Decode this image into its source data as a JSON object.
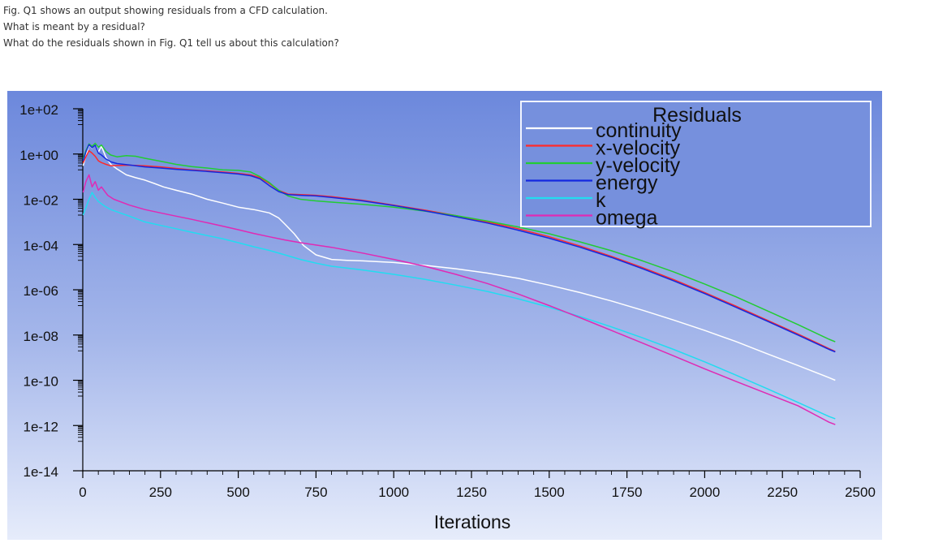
{
  "question": {
    "line1": "Fig. Q1 shows an output showing residuals from a CFD calculation.",
    "line2": "What is meant by a residual?",
    "line3": "What do the residuals shown in Fig. Q1 tell us about this calculation?"
  },
  "chart_data": {
    "type": "line",
    "title": "",
    "xlabel": "Iterations",
    "ylabel": "",
    "xlim": [
      0,
      2500
    ],
    "ylim": [
      1e-14,
      100
    ],
    "yscale": "log",
    "grid": false,
    "legend_title": "Residuals",
    "legend_position": "top-right",
    "x_ticks": [
      "0",
      "250",
      "500",
      "750",
      "1000",
      "1250",
      "1500",
      "1750",
      "2000",
      "2250",
      "2500"
    ],
    "x_tick_values": [
      0,
      250,
      500,
      750,
      1000,
      1250,
      1500,
      1750,
      2000,
      2250,
      2500
    ],
    "y_ticks": [
      "1e+02",
      "1e+00",
      "1e-02",
      "1e-04",
      "1e-06",
      "1e-08",
      "1e-10",
      "1e-12",
      "1e-14"
    ],
    "y_tick_values": [
      100,
      1,
      0.01,
      0.0001,
      1e-06,
      1e-08,
      1e-10,
      1e-12,
      1e-14
    ],
    "series": [
      {
        "name": "continuity",
        "color": "#ffffff",
        "points": [
          [
            1,
            0.3
          ],
          [
            10,
            0.8
          ],
          [
            20,
            2.5
          ],
          [
            30,
            1.8
          ],
          [
            40,
            2.8
          ],
          [
            50,
            1.2
          ],
          [
            60,
            2.2
          ],
          [
            75,
            0.7
          ],
          [
            90,
            0.35
          ],
          [
            110,
            0.22
          ],
          [
            140,
            0.12
          ],
          [
            170,
            0.09
          ],
          [
            200,
            0.07
          ],
          [
            230,
            0.05
          ],
          [
            260,
            0.035
          ],
          [
            300,
            0.025
          ],
          [
            350,
            0.017
          ],
          [
            400,
            0.01
          ],
          [
            450,
            0.0068
          ],
          [
            500,
            0.0045
          ],
          [
            550,
            0.0035
          ],
          [
            600,
            0.0025
          ],
          [
            630,
            0.0015
          ],
          [
            650,
            0.0008
          ],
          [
            680,
            0.0003
          ],
          [
            710,
            9e-05
          ],
          [
            750,
            3.5e-05
          ],
          [
            800,
            2.2e-05
          ],
          [
            850,
            2e-05
          ],
          [
            900,
            1.9e-05
          ],
          [
            1000,
            1.6e-05
          ],
          [
            1100,
            1.2e-05
          ],
          [
            1200,
            8.5e-06
          ],
          [
            1300,
            5.5e-06
          ],
          [
            1400,
            3.2e-06
          ],
          [
            1500,
            1.6e-06
          ],
          [
            1600,
            7.5e-07
          ],
          [
            1700,
            3.2e-07
          ],
          [
            1800,
            1.25e-07
          ],
          [
            1900,
            4.6e-08
          ],
          [
            2000,
            1.6e-08
          ],
          [
            2100,
            5.2e-09
          ],
          [
            2200,
            1.5e-09
          ],
          [
            2300,
            4.5e-10
          ],
          [
            2400,
            1.3e-10
          ],
          [
            2420,
            1e-10
          ]
        ]
      },
      {
        "name": "x-velocity",
        "color": "#ff2a2a",
        "points": [
          [
            1,
            0.4
          ],
          [
            10,
            0.75
          ],
          [
            20,
            1.4
          ],
          [
            30,
            1.1
          ],
          [
            40,
            0.8
          ],
          [
            50,
            0.5
          ],
          [
            60,
            0.42
          ],
          [
            75,
            0.35
          ],
          [
            90,
            0.3
          ],
          [
            110,
            0.31
          ],
          [
            150,
            0.32
          ],
          [
            200,
            0.3
          ],
          [
            250,
            0.27
          ],
          [
            300,
            0.23
          ],
          [
            350,
            0.2
          ],
          [
            400,
            0.18
          ],
          [
            450,
            0.16
          ],
          [
            500,
            0.14
          ],
          [
            540,
            0.12
          ],
          [
            570,
            0.09
          ],
          [
            600,
            0.05
          ],
          [
            630,
            0.025
          ],
          [
            660,
            0.017
          ],
          [
            700,
            0.016
          ],
          [
            750,
            0.015
          ],
          [
            800,
            0.013
          ],
          [
            900,
            0.009
          ],
          [
            1000,
            0.0055
          ],
          [
            1100,
            0.0033
          ],
          [
            1200,
            0.0019
          ],
          [
            1300,
            0.001
          ],
          [
            1400,
            0.0005
          ],
          [
            1500,
            0.00022
          ],
          [
            1600,
            8.5e-05
          ],
          [
            1700,
            3e-05
          ],
          [
            1800,
            9.5e-06
          ],
          [
            1900,
            2.8e-06
          ],
          [
            2000,
            7.5e-07
          ],
          [
            2100,
            1.9e-07
          ],
          [
            2200,
            4.6e-08
          ],
          [
            2300,
            1.1e-08
          ],
          [
            2400,
            2.5e-09
          ],
          [
            2420,
            1.9e-09
          ]
        ]
      },
      {
        "name": "y-velocity",
        "color": "#22cc33",
        "points": [
          [
            1,
            0.6
          ],
          [
            10,
            1.4
          ],
          [
            20,
            2.8
          ],
          [
            30,
            2.2
          ],
          [
            40,
            3.0
          ],
          [
            50,
            2.0
          ],
          [
            60,
            2.5
          ],
          [
            75,
            1.3
          ],
          [
            90,
            0.9
          ],
          [
            110,
            0.75
          ],
          [
            140,
            0.85
          ],
          [
            170,
            0.8
          ],
          [
            200,
            0.65
          ],
          [
            250,
            0.48
          ],
          [
            300,
            0.35
          ],
          [
            350,
            0.28
          ],
          [
            400,
            0.24
          ],
          [
            450,
            0.2
          ],
          [
            500,
            0.19
          ],
          [
            540,
            0.16
          ],
          [
            570,
            0.1
          ],
          [
            600,
            0.055
          ],
          [
            630,
            0.025
          ],
          [
            660,
            0.014
          ],
          [
            700,
            0.01
          ],
          [
            750,
            0.0085
          ],
          [
            800,
            0.0075
          ],
          [
            900,
            0.006
          ],
          [
            1000,
            0.0045
          ],
          [
            1100,
            0.003
          ],
          [
            1200,
            0.0019
          ],
          [
            1300,
            0.0011
          ],
          [
            1400,
            0.0006
          ],
          [
            1500,
            0.0003
          ],
          [
            1600,
            0.00013
          ],
          [
            1700,
            5.3e-05
          ],
          [
            1800,
            1.9e-05
          ],
          [
            1900,
            6.2e-06
          ],
          [
            2000,
            1.8e-06
          ],
          [
            2100,
            4.9e-07
          ],
          [
            2200,
            1.2e-07
          ],
          [
            2300,
            2.9e-08
          ],
          [
            2400,
            6.5e-09
          ],
          [
            2420,
            5e-09
          ]
        ]
      },
      {
        "name": "energy",
        "color": "#1428e0",
        "points": [
          [
            1,
            0.5
          ],
          [
            10,
            1.2
          ],
          [
            20,
            2.6
          ],
          [
            30,
            1.9
          ],
          [
            40,
            2.5
          ],
          [
            50,
            1.1
          ],
          [
            60,
            0.9
          ],
          [
            75,
            0.6
          ],
          [
            90,
            0.45
          ],
          [
            110,
            0.38
          ],
          [
            150,
            0.33
          ],
          [
            200,
            0.27
          ],
          [
            250,
            0.24
          ],
          [
            300,
            0.21
          ],
          [
            350,
            0.19
          ],
          [
            400,
            0.17
          ],
          [
            450,
            0.15
          ],
          [
            500,
            0.13
          ],
          [
            540,
            0.11
          ],
          [
            570,
            0.08
          ],
          [
            600,
            0.04
          ],
          [
            630,
            0.022
          ],
          [
            660,
            0.016
          ],
          [
            700,
            0.015
          ],
          [
            750,
            0.014
          ],
          [
            800,
            0.012
          ],
          [
            900,
            0.0085
          ],
          [
            1000,
            0.0053
          ],
          [
            1100,
            0.0031
          ],
          [
            1200,
            0.0017
          ],
          [
            1300,
            0.0009
          ],
          [
            1400,
            0.00043
          ],
          [
            1500,
            0.00019
          ],
          [
            1600,
            7.5e-05
          ],
          [
            1700,
            2.7e-05
          ],
          [
            1800,
            8.5e-06
          ],
          [
            1900,
            2.5e-06
          ],
          [
            2000,
            6.8e-07
          ],
          [
            2100,
            1.7e-07
          ],
          [
            2200,
            4.2e-08
          ],
          [
            2300,
            1e-08
          ],
          [
            2400,
            2.3e-09
          ],
          [
            2420,
            1.8e-09
          ]
        ]
      },
      {
        "name": "k",
        "color": "#22dcf0",
        "points": [
          [
            1,
            0.002
          ],
          [
            20,
            0.01
          ],
          [
            30,
            0.02
          ],
          [
            40,
            0.012
          ],
          [
            50,
            0.008
          ],
          [
            70,
            0.005
          ],
          [
            90,
            0.0035
          ],
          [
            120,
            0.0025
          ],
          [
            150,
            0.0018
          ],
          [
            200,
            0.001
          ],
          [
            250,
            0.0007
          ],
          [
            300,
            0.0005
          ],
          [
            350,
            0.00035
          ],
          [
            400,
            0.00025
          ],
          [
            450,
            0.00018
          ],
          [
            500,
            0.00012
          ],
          [
            550,
            8e-05
          ],
          [
            600,
            5.5e-05
          ],
          [
            650,
            3.5e-05
          ],
          [
            700,
            2.2e-05
          ],
          [
            750,
            1.5e-05
          ],
          [
            800,
            1.1e-05
          ],
          [
            900,
            7.5e-06
          ],
          [
            1000,
            4.8e-06
          ],
          [
            1100,
            2.9e-06
          ],
          [
            1200,
            1.6e-06
          ],
          [
            1300,
            8.5e-07
          ],
          [
            1400,
            4e-07
          ],
          [
            1500,
            1.7e-07
          ],
          [
            1600,
            6.5e-08
          ],
          [
            1700,
            2.3e-08
          ],
          [
            1800,
            7.5e-09
          ],
          [
            1900,
            2.3e-09
          ],
          [
            2000,
            6.5e-10
          ],
          [
            2100,
            1.7e-10
          ],
          [
            2200,
            4.3e-11
          ],
          [
            2300,
            1.05e-11
          ],
          [
            2400,
            2.5e-12
          ],
          [
            2420,
            2e-12
          ]
        ]
      },
      {
        "name": "omega",
        "color": "#e02ab4",
        "points": [
          [
            1,
            0.02
          ],
          [
            10,
            0.06
          ],
          [
            20,
            0.12
          ],
          [
            30,
            0.035
          ],
          [
            40,
            0.06
          ],
          [
            50,
            0.025
          ],
          [
            60,
            0.035
          ],
          [
            80,
            0.015
          ],
          [
            100,
            0.01
          ],
          [
            150,
            0.0055
          ],
          [
            200,
            0.0035
          ],
          [
            250,
            0.0025
          ],
          [
            300,
            0.0018
          ],
          [
            350,
            0.0013
          ],
          [
            400,
            0.00092
          ],
          [
            450,
            0.00065
          ],
          [
            500,
            0.00045
          ],
          [
            550,
            0.00031
          ],
          [
            600,
            0.00022
          ],
          [
            650,
            0.00016
          ],
          [
            700,
            0.00012
          ],
          [
            750,
            9.5e-05
          ],
          [
            800,
            7.5e-05
          ],
          [
            900,
            4.2e-05
          ],
          [
            1000,
            2.2e-05
          ],
          [
            1100,
            1.1e-05
          ],
          [
            1200,
            4.8e-06
          ],
          [
            1300,
            1.9e-06
          ],
          [
            1400,
            6.5e-07
          ],
          [
            1500,
            2e-07
          ],
          [
            1600,
            5.8e-08
          ],
          [
            1700,
            1.6e-08
          ],
          [
            1800,
            4.4e-09
          ],
          [
            1900,
            1.2e-09
          ],
          [
            2000,
            3.2e-10
          ],
          [
            2100,
            9e-11
          ],
          [
            2200,
            2.6e-11
          ],
          [
            2300,
            7.5e-12
          ],
          [
            2400,
            1.4e-12
          ],
          [
            2420,
            1.1e-12
          ]
        ]
      }
    ]
  }
}
